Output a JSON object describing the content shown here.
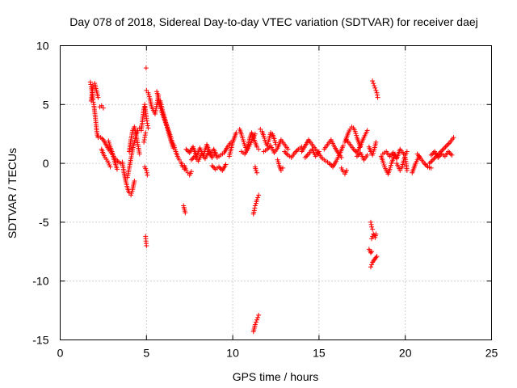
{
  "chart_data": {
    "type": "scatter",
    "title": "Day 078 of 2018, Sidereal Day-to-day VTEC variation (SDTVAR) for receiver daej",
    "xlabel": "GPS time / hours",
    "ylabel": "SDTVAR / TECUs",
    "xlim": [
      0,
      25
    ],
    "ylim": [
      -15,
      10
    ],
    "xticks": [
      0,
      5,
      10,
      15,
      20,
      25
    ],
    "yticks": [
      -15,
      -10,
      -5,
      0,
      5,
      10
    ],
    "grid": true,
    "marker": "plus",
    "color": "#ff0000",
    "series": [
      {
        "name": "SDTVAR",
        "segments": [
          {
            "x": [
              1.75,
              1.8,
              1.85,
              1.9,
              1.95,
              2.0,
              2.05,
              2.1,
              2.15,
              2.2
            ],
            "y": [
              6.9,
              6.5,
              6.0,
              5.4,
              5.0,
              4.4,
              3.8,
              3.0,
              2.4,
              2.2
            ]
          },
          {
            "x": [
              1.8,
              1.9,
              2.0,
              2.1,
              2.2
            ],
            "y": [
              5.3,
              6.6,
              6.8,
              6.2,
              5.6
            ]
          },
          {
            "x": [
              2.3,
              2.4,
              2.5
            ],
            "y": [
              4.8,
              4.9,
              4.7
            ]
          },
          {
            "x": [
              2.2,
              2.35,
              2.5,
              2.65,
              2.8,
              2.95,
              3.1,
              3.25,
              3.4,
              3.5
            ],
            "y": [
              2.3,
              2.2,
              2.0,
              1.6,
              1.2,
              0.9,
              0.6,
              0.3,
              0.1,
              0.0
            ]
          },
          {
            "x": [
              2.4,
              2.5,
              2.6,
              2.75,
              2.9
            ],
            "y": [
              1.2,
              0.8,
              0.5,
              0.2,
              -0.3
            ]
          },
          {
            "x": [
              2.8,
              2.9,
              3.0,
              3.15,
              3.3
            ],
            "y": [
              1.9,
              1.4,
              1.0,
              0.2,
              -0.5
            ]
          },
          {
            "x": [
              3.6,
              3.7,
              3.8,
              3.9,
              4.0,
              4.1,
              4.2,
              4.3
            ],
            "y": [
              0.1,
              -0.8,
              -1.5,
              -2.1,
              -2.5,
              -2.7,
              -2.2,
              -1.5
            ]
          },
          {
            "x": [
              3.9,
              4.0,
              4.1,
              4.2,
              4.3,
              4.4,
              4.5,
              4.6
            ],
            "y": [
              -1.2,
              -0.4,
              0.4,
              1.2,
              1.8,
              2.4,
              2.8,
              3.0
            ]
          },
          {
            "x": [
              4.0,
              4.1,
              4.2,
              4.3,
              4.4,
              4.5,
              4.6
            ],
            "y": [
              1.0,
              2.0,
              2.8,
              3.1,
              2.4,
              1.6,
              0.8
            ]
          },
          {
            "x": [
              4.7,
              4.75,
              4.8,
              4.85,
              4.9,
              4.95,
              5.0,
              5.05,
              5.1
            ],
            "y": [
              2.8,
              3.4,
              4.0,
              4.6,
              5.0,
              4.4,
              3.8,
              3.4,
              3.0
            ]
          },
          {
            "x": [
              4.85,
              4.9,
              4.95
            ],
            "y": [
              1.8,
              2.2,
              2.6
            ]
          },
          {
            "x": [
              4.9,
              5.0,
              5.05
            ],
            "y": [
              -0.3,
              -0.6,
              -1.0
            ]
          },
          {
            "x": [
              4.95,
              4.97,
              5.0
            ],
            "y": [
              -6.2,
              -6.6,
              -7.0
            ]
          },
          {
            "x": [
              4.98
            ],
            "y": [
              8.1
            ]
          },
          {
            "x": [
              5.0,
              5.1,
              5.2,
              5.3,
              5.4,
              5.5,
              5.6,
              5.7
            ],
            "y": [
              6.2,
              6.0,
              5.5,
              4.8,
              4.5,
              4.2,
              5.0,
              5.8
            ]
          },
          {
            "x": [
              5.6,
              5.7,
              5.8,
              5.9,
              6.0,
              6.1,
              6.2,
              6.3,
              6.4,
              6.5,
              6.6
            ],
            "y": [
              6.1,
              5.5,
              4.8,
              4.3,
              3.9,
              3.5,
              3.1,
              2.7,
              2.3,
              1.8,
              1.5
            ]
          },
          {
            "x": [
              5.8,
              5.95,
              6.1,
              6.25,
              6.4,
              6.55
            ],
            "y": [
              5.3,
              4.4,
              3.6,
              2.8,
              2.0,
              1.3
            ]
          },
          {
            "x": [
              6.6,
              6.7,
              6.8,
              6.9,
              7.0,
              7.1,
              7.2
            ],
            "y": [
              1.5,
              1.0,
              0.6,
              0.3,
              0.1,
              -0.3,
              -0.5
            ]
          },
          {
            "x": [
              7.15,
              7.25
            ],
            "y": [
              -3.6,
              -4.2
            ]
          },
          {
            "x": [
              7.2,
              7.3,
              7.4,
              7.5,
              7.6
            ],
            "y": [
              -0.2,
              -0.6,
              -0.8,
              -1.0,
              -0.7
            ]
          },
          {
            "x": [
              7.3,
              7.5,
              7.7,
              7.9,
              8.1,
              8.3,
              8.5,
              8.7,
              8.9,
              9.1,
              9.3,
              9.5,
              9.7,
              9.9
            ],
            "y": [
              1.2,
              0.9,
              1.4,
              0.6,
              1.3,
              0.7,
              1.6,
              0.8,
              1.2,
              0.5,
              0.7,
              0.9,
              1.4,
              1.8
            ]
          },
          {
            "x": [
              7.6,
              7.8,
              8.0,
              8.2,
              8.4,
              8.6,
              8.8,
              9.0
            ],
            "y": [
              0.3,
              0.6,
              0.2,
              0.8,
              0.4,
              1.0,
              0.5,
              0.9
            ]
          },
          {
            "x": [
              8.8,
              9.0,
              9.2,
              9.4,
              9.6
            ],
            "y": [
              -0.2,
              -0.5,
              -0.3,
              -0.6,
              -0.1
            ]
          },
          {
            "x": [
              9.8,
              9.9,
              10.0,
              10.1,
              10.2
            ],
            "y": [
              0.6,
              1.2,
              1.8,
              2.2,
              2.6
            ]
          },
          {
            "x": [
              10.4,
              10.5,
              10.6,
              10.7,
              10.8,
              10.9,
              11.0,
              11.1,
              11.2,
              11.3,
              11.4,
              11.5
            ],
            "y": [
              2.9,
              2.5,
              2.0,
              1.5,
              1.2,
              1.6,
              2.2,
              2.6,
              2.3,
              1.8,
              1.4,
              1.2
            ]
          },
          {
            "x": [
              10.5,
              10.7,
              10.9,
              11.1,
              11.3
            ],
            "y": [
              1.0,
              0.8,
              1.3,
              1.9,
              2.5
            ]
          },
          {
            "x": [
              11.2,
              11.25,
              11.3,
              11.35,
              11.4,
              11.45,
              11.5
            ],
            "y": [
              -4.3,
              -4.0,
              -3.6,
              -3.4,
              -3.1,
              -2.9,
              -2.7
            ]
          },
          {
            "x": [
              11.3,
              11.35,
              11.4
            ],
            "y": [
              -0.3,
              -0.6,
              -0.8
            ]
          },
          {
            "x": [
              11.2,
              11.25,
              11.3,
              11.35,
              11.4,
              11.45,
              11.5
            ],
            "y": [
              -14.3,
              -14.0,
              -13.7,
              -13.5,
              -13.3,
              -13.1,
              -12.9
            ]
          },
          {
            "x": [
              11.6,
              11.7,
              11.8,
              11.9,
              12.0,
              12.1,
              12.2,
              12.3,
              12.4,
              12.5
            ],
            "y": [
              2.9,
              2.7,
              2.3,
              1.8,
              1.5,
              2.0,
              2.6,
              2.5,
              2.1,
              1.6
            ]
          },
          {
            "x": [
              11.8,
              12.0,
              12.2,
              12.4,
              12.6,
              12.8,
              13.0,
              13.2
            ],
            "y": [
              1.0,
              1.2,
              1.5,
              0.9,
              1.3,
              2.0,
              1.6,
              1.2
            ]
          },
          {
            "x": [
              12.6,
              12.7,
              12.8,
              12.9
            ],
            "y": [
              0.3,
              -0.2,
              -0.6,
              -0.4
            ]
          },
          {
            "x": [
              13.0,
              13.2,
              13.4,
              13.6,
              13.8,
              14.0
            ],
            "y": [
              1.0,
              0.7,
              0.5,
              0.9,
              1.2,
              1.4
            ]
          },
          {
            "x": [
              14.0,
              14.2,
              14.4,
              14.6,
              14.8,
              15.0
            ],
            "y": [
              1.0,
              1.5,
              2.0,
              1.6,
              1.2,
              0.8
            ]
          },
          {
            "x": [
              14.2,
              14.4,
              14.6,
              14.8,
              15.0
            ],
            "y": [
              0.5,
              0.8,
              1.2,
              0.6,
              1.0
            ]
          },
          {
            "x": [
              15.0,
              15.2,
              15.4,
              15.6,
              15.8,
              16.0,
              16.2,
              16.4
            ],
            "y": [
              0.8,
              0.4,
              0.2,
              0.0,
              -0.3,
              0.2,
              0.8,
              1.5
            ]
          },
          {
            "x": [
              15.3,
              15.5,
              15.7,
              15.9,
              16.1,
              16.3
            ],
            "y": [
              1.2,
              1.6,
              2.0,
              1.4,
              0.9,
              0.5
            ]
          },
          {
            "x": [
              16.3,
              16.4,
              16.5,
              16.6
            ],
            "y": [
              -0.4,
              -0.7,
              -0.9,
              -0.6
            ]
          },
          {
            "x": [
              16.5,
              16.6,
              16.7,
              16.8,
              16.9,
              17.0,
              17.1,
              17.2,
              17.3,
              17.4
            ],
            "y": [
              1.8,
              2.2,
              2.6,
              2.9,
              3.1,
              3.0,
              2.7,
              2.2,
              1.8,
              1.4
            ]
          },
          {
            "x": [
              16.6,
              16.8,
              17.0,
              17.2,
              17.4,
              17.6,
              17.8
            ],
            "y": [
              2.0,
              1.6,
              1.2,
              0.9,
              1.5,
              2.2,
              2.8
            ]
          },
          {
            "x": [
              17.2,
              17.4,
              17.6,
              17.8
            ],
            "y": [
              0.6,
              0.9,
              0.3,
              0.7
            ]
          },
          {
            "x": [
              17.9,
              18.0,
              18.1,
              18.2,
              18.3
            ],
            "y": [
              1.4,
              1.0,
              0.7,
              1.2,
              1.8
            ]
          },
          {
            "x": [
              18.0,
              18.05,
              18.1
            ],
            "y": [
              -5.0,
              -5.4,
              -5.6
            ]
          },
          {
            "x": [
              18.05,
              18.1,
              18.15,
              18.2,
              18.25,
              18.3
            ],
            "y": [
              -6.4,
              -6.2,
              -6.0,
              -6.1,
              -6.3,
              -6.0
            ]
          },
          {
            "x": [
              17.9,
              18.0,
              18.05
            ],
            "y": [
              -7.3,
              -7.6,
              -7.5
            ]
          },
          {
            "x": [
              18.0,
              18.05,
              18.1,
              18.15,
              18.2,
              18.25,
              18.3,
              18.35
            ],
            "y": [
              -8.8,
              -8.6,
              -8.4,
              -8.3,
              -8.2,
              -8.1,
              -8.0,
              -7.9
            ]
          },
          {
            "x": [
              18.1,
              18.15,
              18.2,
              18.25,
              18.3,
              18.35,
              18.4
            ],
            "y": [
              7.0,
              6.8,
              6.6,
              6.4,
              6.2,
              6.0,
              5.6
            ]
          },
          {
            "x": [
              18.6,
              18.7,
              18.8,
              18.9,
              19.0,
              19.1,
              19.2,
              19.3,
              19.4,
              19.5
            ],
            "y": [
              0.6,
              0.2,
              -0.3,
              -0.6,
              -0.9,
              -0.5,
              0.0,
              0.4,
              0.8,
              0.5
            ]
          },
          {
            "x": [
              18.7,
              18.9,
              19.1,
              19.3,
              19.5,
              19.7,
              19.9
            ],
            "y": [
              0.8,
              1.0,
              0.6,
              0.9,
              0.4,
              1.2,
              0.8
            ]
          },
          {
            "x": [
              19.5,
              19.6,
              19.7,
              19.8,
              19.9,
              20.0,
              20.1
            ],
            "y": [
              0.0,
              -0.3,
              -0.6,
              -0.4,
              0.2,
              0.7,
              1.0
            ]
          },
          {
            "x": [
              20.0,
              20.05,
              20.1
            ],
            "y": [
              0.5,
              0.0,
              -0.6
            ]
          },
          {
            "x": [
              20.4,
              20.5,
              20.6,
              20.7,
              20.8
            ],
            "y": [
              -0.8,
              -0.4,
              0.0,
              0.3,
              0.6
            ]
          },
          {
            "x": [
              20.7,
              20.9,
              21.1,
              21.3,
              21.5
            ],
            "y": [
              0.8,
              0.4,
              0.0,
              -0.3,
              -0.4
            ]
          },
          {
            "x": [
              21.4,
              21.6,
              21.8,
              22.0,
              22.2,
              22.4,
              22.6,
              22.8
            ],
            "y": [
              0.0,
              0.3,
              0.6,
              0.9,
              1.2,
              1.5,
              1.8,
              2.2
            ]
          },
          {
            "x": [
              21.5,
              21.7,
              21.9,
              22.1,
              22.3,
              22.5,
              22.7
            ],
            "y": [
              0.7,
              1.0,
              0.5,
              0.8,
              0.6,
              1.0,
              0.7
            ]
          }
        ]
      }
    ]
  }
}
